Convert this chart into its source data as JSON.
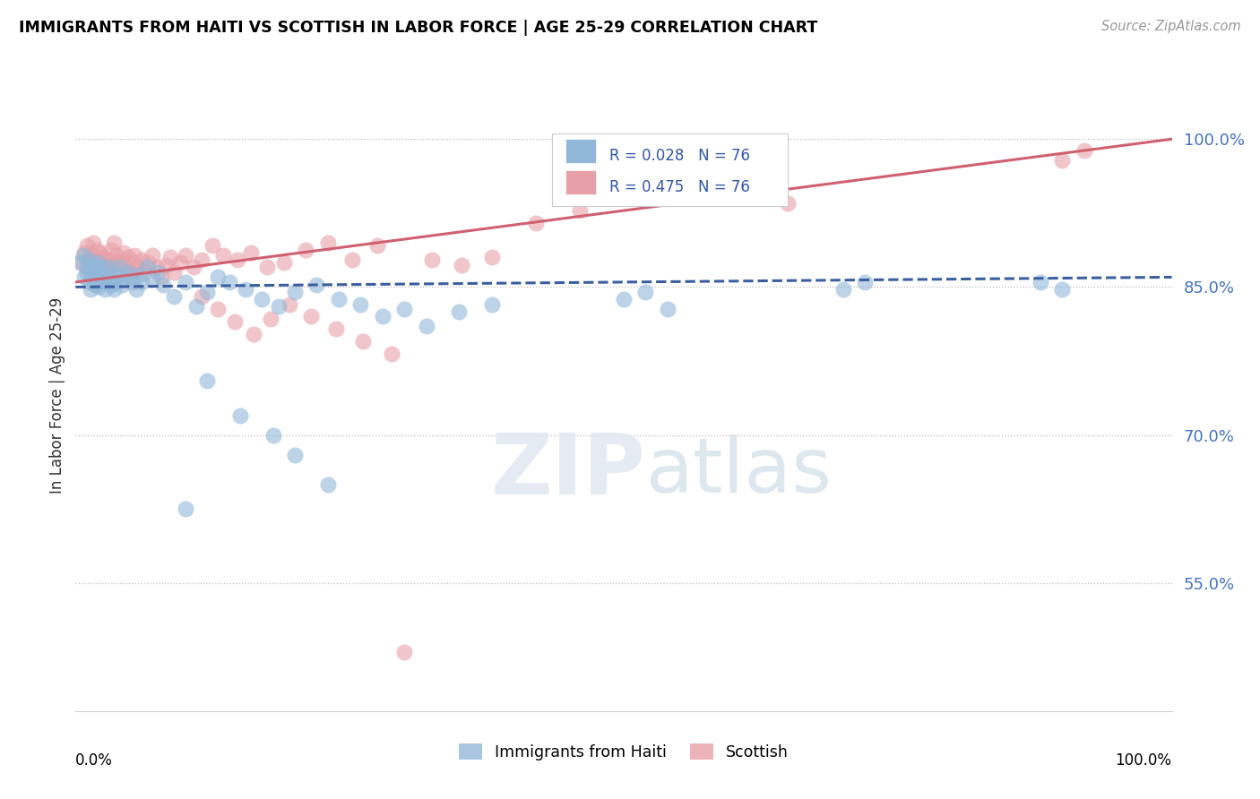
{
  "title": "IMMIGRANTS FROM HAITI VS SCOTTISH IN LABOR FORCE | AGE 25-29 CORRELATION CHART",
  "source": "Source: ZipAtlas.com",
  "ylabel": "In Labor Force | Age 25-29",
  "xlim": [
    0.0,
    1.0
  ],
  "ylim": [
    0.42,
    1.06
  ],
  "yticks": [
    0.55,
    0.7,
    0.85,
    1.0
  ],
  "ytick_labels": [
    "55.0%",
    "70.0%",
    "85.0%",
    "100.0%"
  ],
  "haiti_R": 0.028,
  "scottish_R": 0.475,
  "N": 76,
  "haiti_color": "#92b8d9",
  "scottish_color": "#e8a0a8",
  "haiti_line_color": "#3a5fa0",
  "scottish_line_color": "#d06070",
  "legend_label_haiti": "Immigrants from Haiti",
  "legend_label_scottish": "Scottish"
}
